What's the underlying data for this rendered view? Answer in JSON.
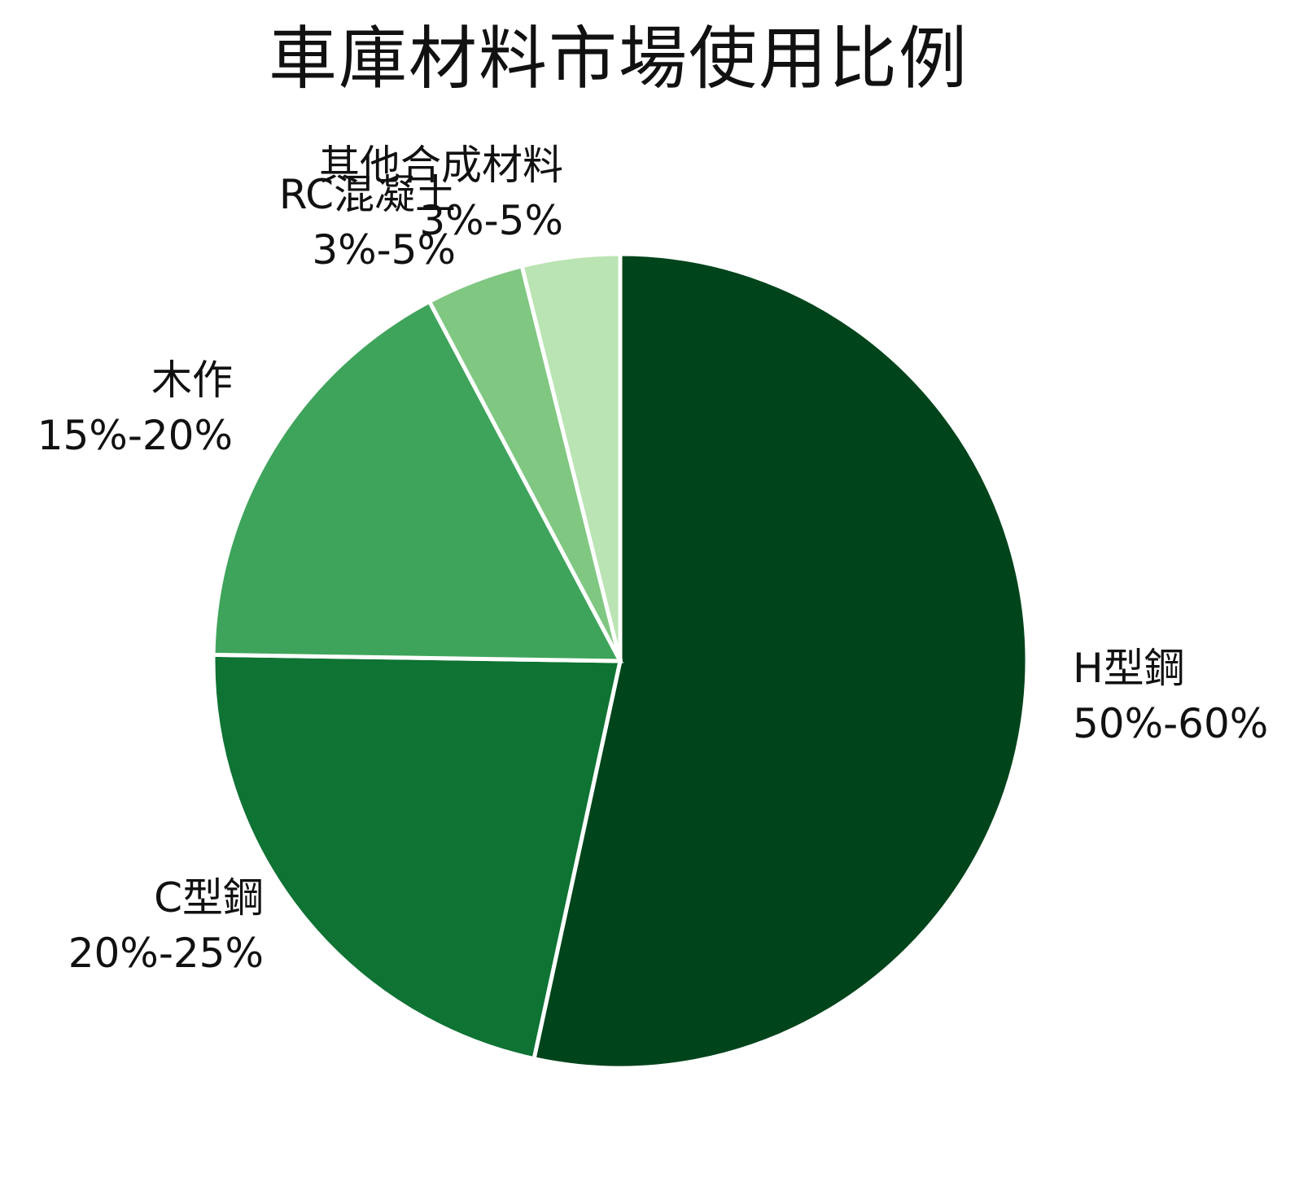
{
  "chart_data": {
    "type": "pie",
    "title": "車庫材料市場使用比例",
    "slices": [
      {
        "category": "H型鋼",
        "range": "50%-60%",
        "value": 55,
        "color": "#00441b"
      },
      {
        "category": "C型鋼",
        "range": "20%-25%",
        "value": 22.5,
        "color": "#0e7333"
      },
      {
        "category": "木作",
        "range": "15%-20%",
        "value": 17.5,
        "color": "#3fa45b"
      },
      {
        "category": "RC混凝土",
        "range": "3%-5%",
        "value": 4,
        "color": "#80c782"
      },
      {
        "category": "其他合成材料",
        "range": "3%-5%",
        "value": 4,
        "color": "#bae4b3"
      }
    ],
    "start_angle": "top",
    "direction": "clockwise",
    "legend": "none"
  }
}
